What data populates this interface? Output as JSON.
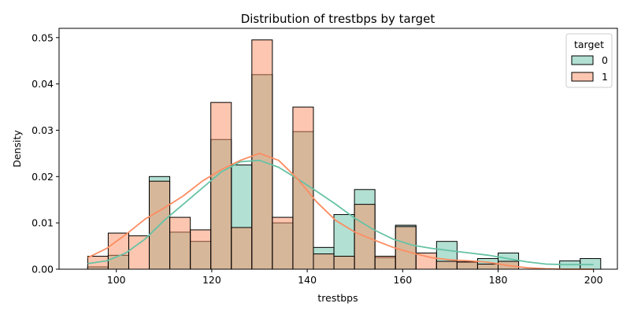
{
  "chart_data": {
    "type": "histogram",
    "title": "Distribution of trestbps by target",
    "xlabel": "trestbps",
    "ylabel": "Density",
    "xlim": [
      88,
      205
    ],
    "ylim": [
      0,
      0.052
    ],
    "xticks": [
      100,
      120,
      140,
      160,
      180,
      200
    ],
    "yticks": [
      0.0,
      0.01,
      0.02,
      0.03,
      0.04,
      0.05
    ],
    "ytick_labels": [
      "0.00",
      "0.01",
      "0.02",
      "0.03",
      "0.04",
      "0.05"
    ],
    "bin_edges": [
      94,
      98.3,
      102.6,
      106.9,
      111.2,
      115.5,
      119.8,
      124.1,
      128.4,
      132.7,
      137.0,
      141.3,
      145.6,
      149.9,
      154.2,
      158.5,
      162.8,
      167.1,
      171.4,
      175.7,
      180.0,
      184.3,
      188.6,
      192.9,
      197.2,
      201.5
    ],
    "legend": {
      "title": "target",
      "position": "top-right"
    },
    "series": [
      {
        "name": "0",
        "color": "#66c2a5",
        "fill_alpha": 0.5,
        "values": [
          0.0005,
          0.003,
          0.0,
          0.02,
          0.008,
          0.006,
          0.028,
          0.0225,
          0.042,
          0.01,
          0.0297,
          0.0047,
          0.0118,
          0.0172,
          0.0025,
          0.0095,
          0.0,
          0.006,
          0.0015,
          0.0023,
          0.0035,
          0.0,
          0.0,
          0.0018,
          0.0023
        ],
        "kde": {
          "x": [
            94,
            98,
            102,
            106,
            110,
            114,
            118,
            122,
            126,
            130,
            134,
            138,
            142,
            146,
            150,
            154,
            158,
            162,
            166,
            170,
            174,
            178,
            182,
            186,
            190,
            194,
            198,
            200
          ],
          "y": [
            0.0012,
            0.0018,
            0.0035,
            0.0065,
            0.0105,
            0.014,
            0.0175,
            0.021,
            0.0232,
            0.0235,
            0.022,
            0.0195,
            0.0168,
            0.014,
            0.011,
            0.0085,
            0.0065,
            0.0052,
            0.0045,
            0.004,
            0.0035,
            0.003,
            0.0023,
            0.0016,
            0.0011,
            0.001,
            0.001,
            0.001
          ]
        }
      },
      {
        "name": "1",
        "color": "#fc8d62",
        "fill_alpha": 0.5,
        "values": [
          0.0028,
          0.0078,
          0.0072,
          0.019,
          0.0112,
          0.0085,
          0.036,
          0.009,
          0.0495,
          0.0112,
          0.035,
          0.0033,
          0.0028,
          0.014,
          0.0028,
          0.0092,
          0.0035,
          0.0017,
          0.0016,
          0.0011,
          0.0017,
          0.0,
          0.0,
          0.0,
          0.0
        ],
        "kde": {
          "x": [
            94,
            98,
            102,
            106,
            110,
            114,
            118,
            122,
            126,
            130,
            134,
            138,
            142,
            146,
            150,
            154,
            158,
            162,
            166,
            170,
            174,
            178,
            182,
            186,
            190,
            194,
            198,
            200
          ],
          "y": [
            0.0025,
            0.0045,
            0.0075,
            0.0108,
            0.0132,
            0.0158,
            0.019,
            0.0215,
            0.0235,
            0.025,
            0.0235,
            0.0195,
            0.0145,
            0.0105,
            0.008,
            0.0063,
            0.0047,
            0.0035,
            0.0025,
            0.002,
            0.0018,
            0.0015,
            0.0008,
            0.0003,
            0.0001,
            0.0,
            0.0,
            0.0
          ]
        }
      }
    ]
  }
}
